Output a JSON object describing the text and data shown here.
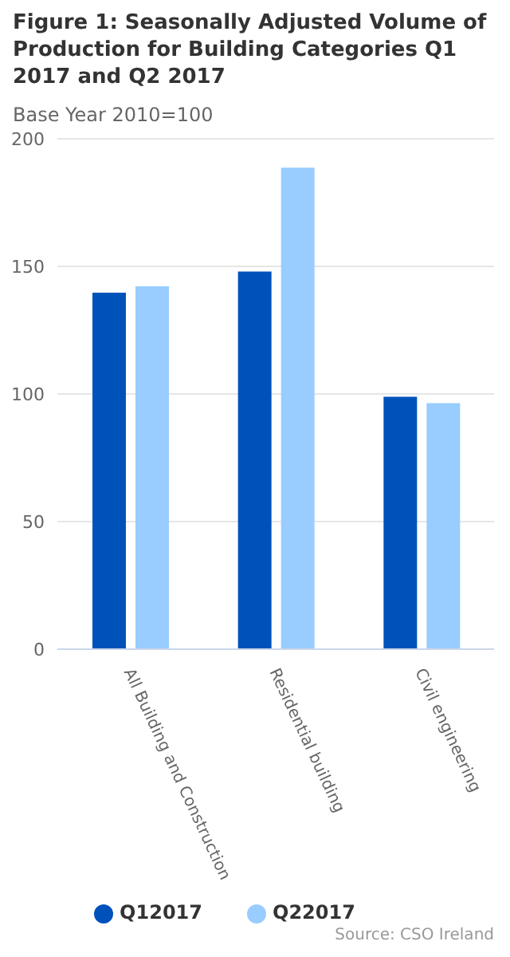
{
  "chart_data": {
    "type": "bar",
    "title": "Figure 1: Seasonally Adjusted Volume of Production for Building Categories Q1 2017 and Q2 2017",
    "subtitle": "Base Year 2010=100",
    "categories": [
      "All Building and Construction",
      "Residential building",
      "Civil engineering"
    ],
    "series": [
      {
        "name": "Q12017",
        "color": "#0052bb",
        "values": [
          139.7,
          148,
          98.9
        ]
      },
      {
        "name": "Q22017",
        "color": "#99ccff",
        "values": [
          142.2,
          188.7,
          96.4
        ]
      }
    ],
    "ylim": [
      0,
      200
    ],
    "yticks": [
      0,
      50,
      100,
      150,
      200
    ],
    "grid": "y",
    "legend": "bottom",
    "annotations": [
      "Source: CSO Ireland"
    ]
  }
}
